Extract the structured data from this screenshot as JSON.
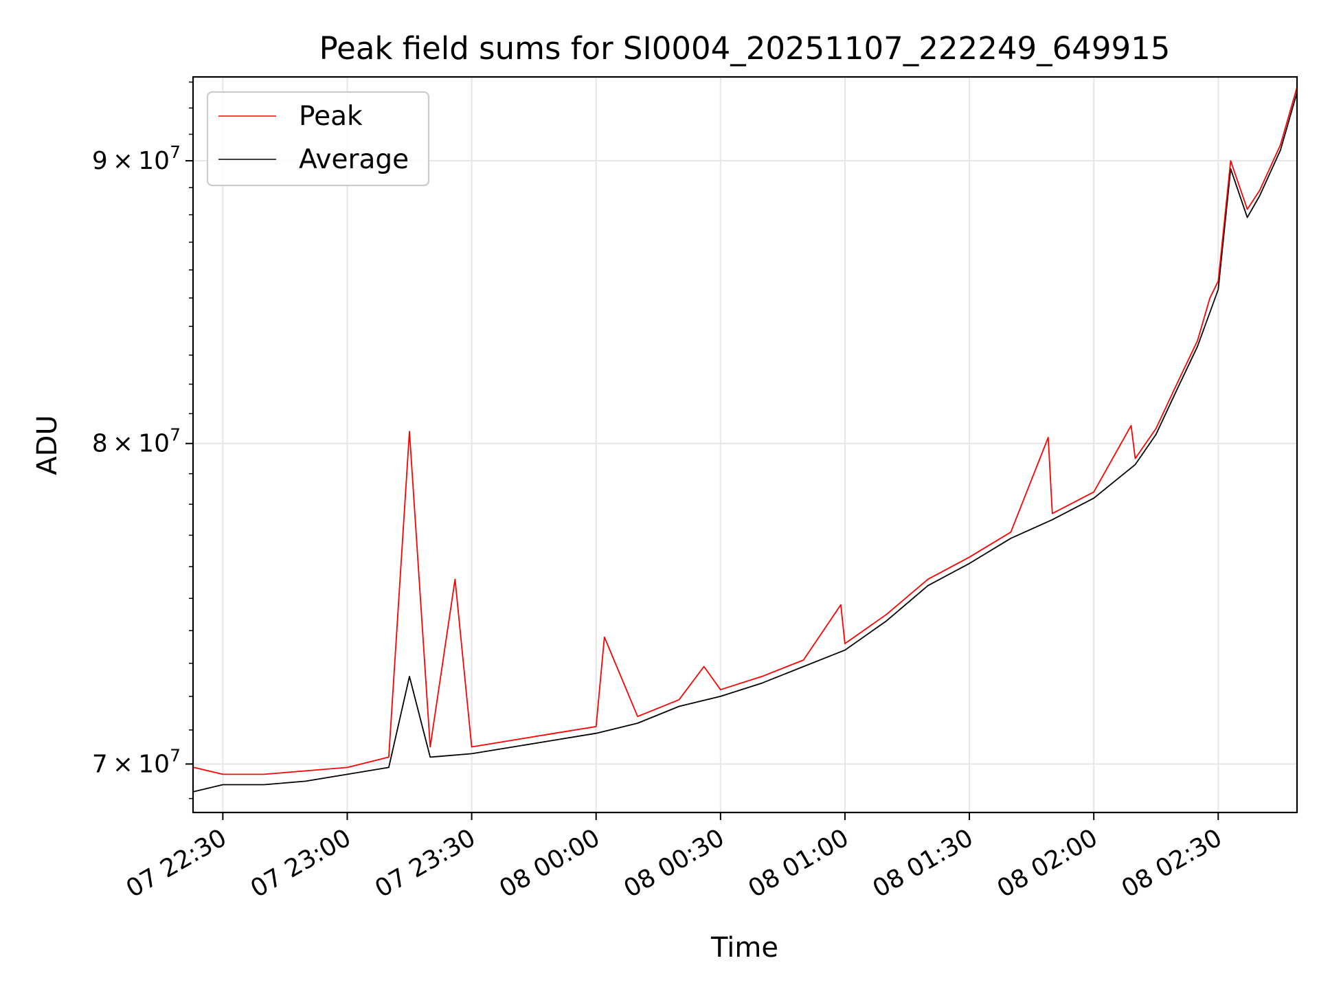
{
  "chart_data": {
    "type": "line",
    "title": "Peak field sums for SI0004_20251107_222249_649915",
    "xlabel": "Time",
    "ylabel": "ADU",
    "x_ticks": [
      "07 22:30",
      "07 23:00",
      "07 23:30",
      "08 00:00",
      "08 00:30",
      "08 01:00",
      "08 01:30",
      "08 02:00",
      "08 02:30"
    ],
    "y_ticks": [
      {
        "base": "9 × 10",
        "exp": "7",
        "value": 90000000
      },
      {
        "base": "8 × 10",
        "exp": "7",
        "value": 80000000
      },
      {
        "base": "7 × 10",
        "exp": "7",
        "value": 70000000
      }
    ],
    "xlim": [
      "2025-11-07 22:22:49",
      "2025-11-08 02:49:00"
    ],
    "ylim": [
      68600000,
      93200000
    ],
    "y_scale": "log",
    "grid": true,
    "legend_position": "top-left",
    "series": [
      {
        "name": "Peak",
        "color": "#ff0000",
        "x": [
          "2025-11-07 22:23",
          "2025-11-07 22:30",
          "2025-11-07 22:40",
          "2025-11-07 22:50",
          "2025-11-07 23:00",
          "2025-11-07 23:10",
          "2025-11-07 23:15",
          "2025-11-07 23:20",
          "2025-11-07 23:26",
          "2025-11-07 23:30",
          "2025-11-07 23:40",
          "2025-11-07 23:50",
          "2025-11-08 00:00",
          "2025-11-08 00:02",
          "2025-11-08 00:10",
          "2025-11-08 00:20",
          "2025-11-08 00:26",
          "2025-11-08 00:30",
          "2025-11-08 00:40",
          "2025-11-08 00:50",
          "2025-11-08 00:59",
          "2025-11-08 01:00",
          "2025-11-08 01:10",
          "2025-11-08 01:20",
          "2025-11-08 01:30",
          "2025-11-08 01:40",
          "2025-11-08 01:49",
          "2025-11-08 01:50",
          "2025-11-08 02:00",
          "2025-11-08 02:09",
          "2025-11-08 02:10",
          "2025-11-08 02:15",
          "2025-11-08 02:20",
          "2025-11-08 02:25",
          "2025-11-08 02:28",
          "2025-11-08 02:30",
          "2025-11-08 02:33",
          "2025-11-08 02:37",
          "2025-11-08 02:40",
          "2025-11-08 02:45",
          "2025-11-08 02:49"
        ],
        "y": [
          69900000,
          69700000,
          69700000,
          69800000,
          69900000,
          70200000,
          80400000,
          70500000,
          75600000,
          70500000,
          70700000,
          70900000,
          71100000,
          73800000,
          71400000,
          71900000,
          72900000,
          72200000,
          72600000,
          73100000,
          74800000,
          73600000,
          74500000,
          75600000,
          76300000,
          77100000,
          80200000,
          77700000,
          78400000,
          80600000,
          79500000,
          80500000,
          82000000,
          83500000,
          85000000,
          85600000,
          90000000,
          88200000,
          88900000,
          90600000,
          92800000
        ]
      },
      {
        "name": "Average",
        "color": "#000000",
        "x": [
          "2025-11-07 22:23",
          "2025-11-07 22:30",
          "2025-11-07 22:40",
          "2025-11-07 22:50",
          "2025-11-07 23:00",
          "2025-11-07 23:10",
          "2025-11-07 23:15",
          "2025-11-07 23:20",
          "2025-11-07 23:30",
          "2025-11-07 23:40",
          "2025-11-07 23:50",
          "2025-11-08 00:00",
          "2025-11-08 00:10",
          "2025-11-08 00:20",
          "2025-11-08 00:30",
          "2025-11-08 00:40",
          "2025-11-08 00:50",
          "2025-11-08 01:00",
          "2025-11-08 01:10",
          "2025-11-08 01:20",
          "2025-11-08 01:30",
          "2025-11-08 01:40",
          "2025-11-08 01:50",
          "2025-11-08 02:00",
          "2025-11-08 02:10",
          "2025-11-08 02:15",
          "2025-11-08 02:20",
          "2025-11-08 02:25",
          "2025-11-08 02:30",
          "2025-11-08 02:33",
          "2025-11-08 02:37",
          "2025-11-08 02:40",
          "2025-11-08 02:45",
          "2025-11-08 02:49"
        ],
        "y": [
          69200000,
          69400000,
          69400000,
          69500000,
          69700000,
          69900000,
          72600000,
          70200000,
          70300000,
          70500000,
          70700000,
          70900000,
          71200000,
          71700000,
          72000000,
          72400000,
          72900000,
          73400000,
          74300000,
          75400000,
          76100000,
          76900000,
          77500000,
          78200000,
          79300000,
          80300000,
          81800000,
          83300000,
          85300000,
          89700000,
          87900000,
          88700000,
          90400000,
          92600000
        ]
      }
    ]
  }
}
